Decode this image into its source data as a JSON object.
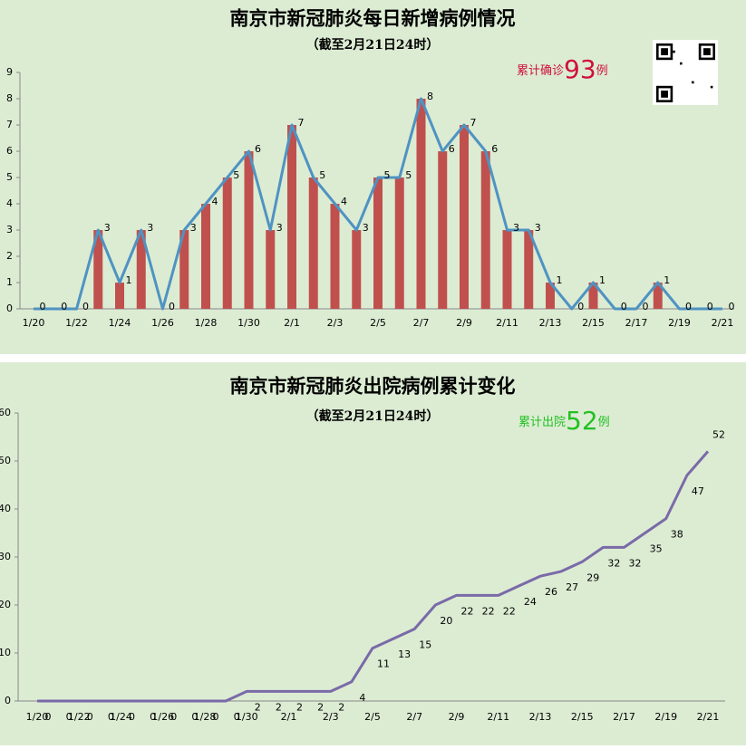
{
  "chart_data": [
    {
      "type": "bar",
      "title": "南京市新冠肺炎每日新增病例情况",
      "subtitle": "（截至2月21日24时）",
      "annotation": {
        "prefix": "累计确诊",
        "value": 93,
        "suffix": "例"
      },
      "categories": [
        "1/20",
        null,
        "1/22",
        null,
        "1/24",
        null,
        "1/26",
        null,
        "1/28",
        null,
        "1/30",
        null,
        "2/1",
        null,
        "2/3",
        null,
        "2/5",
        null,
        "2/7",
        null,
        "2/9",
        null,
        "2/11",
        null,
        "2/13",
        null,
        "2/15",
        null,
        "2/17",
        null,
        "2/19",
        null,
        "2/21"
      ],
      "values": [
        0,
        0,
        0,
        3,
        1,
        3,
        0,
        3,
        4,
        5,
        6,
        3,
        7,
        5,
        4,
        3,
        5,
        5,
        8,
        6,
        7,
        6,
        3,
        3,
        1,
        0,
        1,
        0,
        0,
        1,
        0,
        0,
        0
      ],
      "color": "#c0504d",
      "line_color": "#4f93c2",
      "ylim": [
        0,
        9
      ],
      "yticks": [
        0,
        1,
        2,
        3,
        4,
        5,
        6,
        7,
        8,
        9
      ]
    },
    {
      "type": "line",
      "title": "南京市新冠肺炎出院病例累计变化",
      "subtitle": "（截至2月21日24时）",
      "annotation": {
        "prefix": "累计出院",
        "value": 52,
        "suffix": "例"
      },
      "categories": [
        "1/20",
        null,
        "1/22",
        null,
        "1/24",
        null,
        "1/26",
        null,
        "1/28",
        null,
        "1/30",
        null,
        "2/1",
        null,
        "2/3",
        null,
        "2/5",
        null,
        "2/7",
        null,
        "2/9",
        null,
        "2/11",
        null,
        "2/13",
        null,
        "2/15",
        null,
        "2/17",
        null,
        "2/19",
        null,
        "2/21"
      ],
      "values": [
        0,
        0,
        0,
        0,
        0,
        0,
        0,
        0,
        0,
        0,
        2,
        2,
        2,
        2,
        2,
        4,
        11,
        13,
        15,
        20,
        22,
        22,
        22,
        24,
        26,
        27,
        29,
        32,
        32,
        35,
        38,
        47,
        52
      ],
      "color": "#7a6aa8",
      "ylim": [
        0,
        60
      ],
      "yticks": [
        0,
        10,
        20,
        30,
        40,
        50,
        60
      ]
    }
  ]
}
